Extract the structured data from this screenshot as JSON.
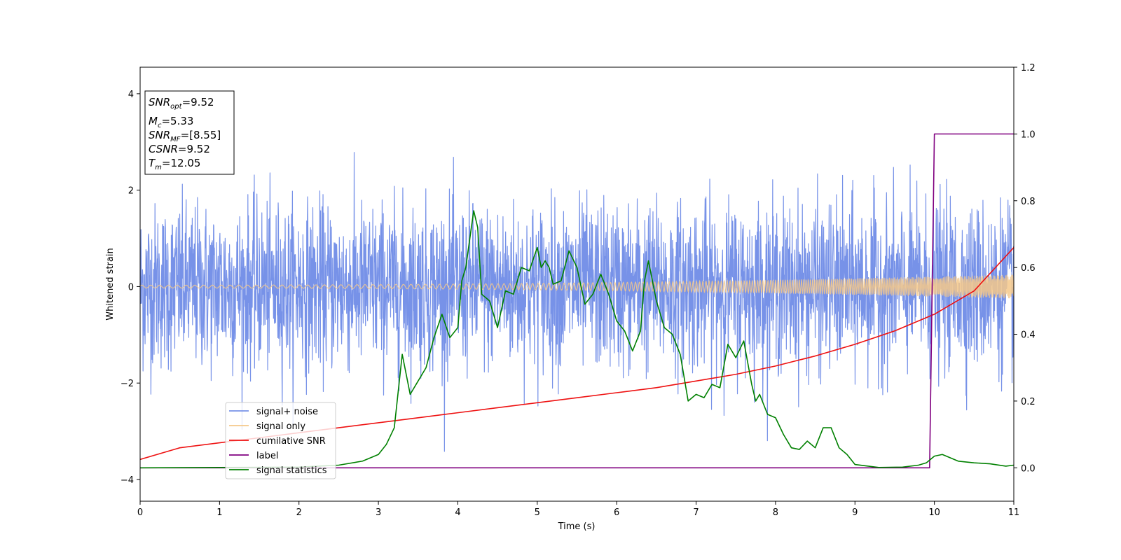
{
  "chart_data": {
    "type": "line",
    "title": "",
    "xlabel": "Time (s)",
    "ylabel": "Whitened strain",
    "y2label": "",
    "xlim": [
      0,
      11
    ],
    "ylim": [
      -4.45,
      4.55
    ],
    "y2lim": [
      -0.1,
      1.2
    ],
    "xticks": [
      0,
      1,
      2,
      3,
      4,
      5,
      6,
      7,
      8,
      9,
      10,
      11
    ],
    "yticks": [
      -4,
      -2,
      0,
      2,
      4
    ],
    "y2ticks": [
      "0.0",
      "0.2",
      "0.4",
      "0.6",
      "0.8",
      "1.0",
      "1.2"
    ],
    "grid": false,
    "legend_position": "bottom-left",
    "info_box": {
      "lines": [
        {
          "label": "SNR",
          "sub": "opt",
          "value": "=9.52"
        },
        {
          "label": "M",
          "sub": "c",
          "value": "=5.33"
        },
        {
          "label": "SNR",
          "sub": "MF",
          "value": "=[8.55]"
        },
        {
          "label": "CSNR",
          "sub": "",
          "value": "=9.52"
        },
        {
          "label": "T",
          "sub": "m",
          "value": "=12.05"
        }
      ]
    },
    "series": [
      {
        "name": "signal+ noise",
        "color": "#7792e8",
        "axis": "left",
        "kind": "noise",
        "std": 0.85,
        "max_abs_peak": 4.15
      },
      {
        "name": "signal only",
        "color": "#f5c88a",
        "axis": "left",
        "kind": "chirp",
        "amplitude_start": 0.03,
        "amplitude_end": 0.25
      },
      {
        "name": "cumilative SNR",
        "color": "#ee1111",
        "axis": "right",
        "x": [
          0,
          0.5,
          1,
          1.5,
          2,
          2.5,
          3,
          3.5,
          4,
          4.5,
          5,
          5.5,
          6,
          6.5,
          7,
          7.5,
          8,
          8.5,
          9,
          9.5,
          10,
          10.5,
          11
        ],
        "y": [
          0.025,
          0.06,
          0.075,
          0.09,
          0.105,
          0.12,
          0.135,
          0.15,
          0.165,
          0.18,
          0.195,
          0.21,
          0.225,
          0.24,
          0.26,
          0.28,
          0.305,
          0.335,
          0.37,
          0.41,
          0.46,
          0.53,
          0.66
        ]
      },
      {
        "name": "label",
        "color": "#800080",
        "axis": "right",
        "x": [
          0,
          9.94,
          10.0,
          11
        ],
        "y": [
          0.0,
          0.0,
          1.0,
          1.0
        ]
      },
      {
        "name": "signal statistics",
        "color": "#008000",
        "axis": "right",
        "x": [
          0,
          1,
          2,
          2.5,
          2.8,
          3.0,
          3.1,
          3.2,
          3.3,
          3.4,
          3.5,
          3.6,
          3.7,
          3.8,
          3.9,
          4.0,
          4.05,
          4.1,
          4.2,
          4.25,
          4.3,
          4.4,
          4.5,
          4.6,
          4.7,
          4.8,
          4.9,
          5.0,
          5.05,
          5.1,
          5.15,
          5.2,
          5.3,
          5.4,
          5.5,
          5.6,
          5.7,
          5.8,
          5.9,
          6.0,
          6.1,
          6.2,
          6.3,
          6.35,
          6.4,
          6.5,
          6.6,
          6.7,
          6.8,
          6.9,
          7.0,
          7.1,
          7.2,
          7.3,
          7.4,
          7.5,
          7.6,
          7.7,
          7.75,
          7.8,
          7.9,
          8.0,
          8.1,
          8.2,
          8.3,
          8.4,
          8.5,
          8.6,
          8.7,
          8.8,
          8.9,
          9.0,
          9.3,
          9.6,
          9.8,
          9.9,
          10.0,
          10.1,
          10.2,
          10.3,
          10.5,
          10.7,
          10.9,
          11.0
        ],
        "y": [
          0.0,
          0.001,
          0.002,
          0.008,
          0.02,
          0.04,
          0.07,
          0.12,
          0.34,
          0.22,
          0.26,
          0.3,
          0.39,
          0.46,
          0.39,
          0.42,
          0.56,
          0.6,
          0.77,
          0.72,
          0.52,
          0.5,
          0.42,
          0.53,
          0.52,
          0.6,
          0.59,
          0.66,
          0.6,
          0.62,
          0.6,
          0.55,
          0.56,
          0.65,
          0.6,
          0.49,
          0.52,
          0.58,
          0.52,
          0.44,
          0.41,
          0.35,
          0.41,
          0.56,
          0.62,
          0.5,
          0.42,
          0.4,
          0.34,
          0.2,
          0.22,
          0.21,
          0.25,
          0.24,
          0.37,
          0.33,
          0.38,
          0.25,
          0.2,
          0.22,
          0.16,
          0.15,
          0.1,
          0.06,
          0.055,
          0.08,
          0.06,
          0.12,
          0.12,
          0.06,
          0.04,
          0.01,
          0.001,
          0.002,
          0.008,
          0.015,
          0.035,
          0.04,
          0.03,
          0.02,
          0.015,
          0.012,
          0.005,
          0.008
        ]
      }
    ]
  }
}
